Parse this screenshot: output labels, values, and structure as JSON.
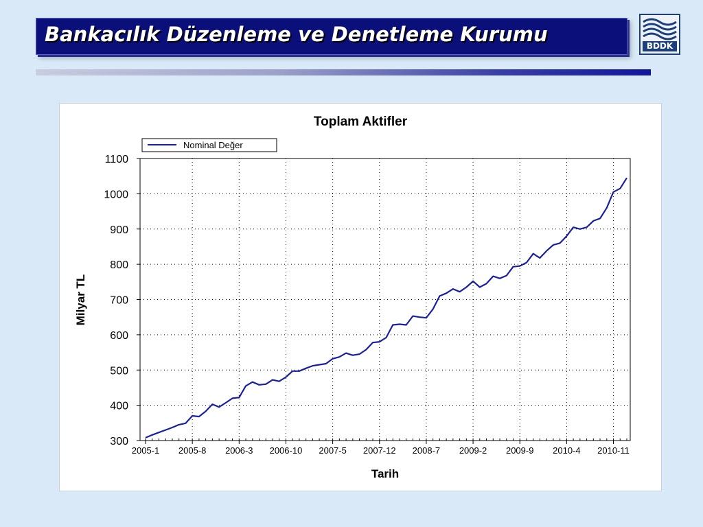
{
  "header": {
    "title": "Bankacılık Düzenleme ve Denetleme Kurumu",
    "logo_text": "BDDK"
  },
  "colors": {
    "title_bg": "#0a0f7a",
    "line": "#1a1fa0",
    "background": "#d9e9f7"
  },
  "chart_data": {
    "type": "line",
    "title": "Toplam Aktifler",
    "xlabel": "Tarih",
    "ylabel": "Milyar TL",
    "ylim": [
      300,
      1100
    ],
    "yticks": [
      300,
      400,
      500,
      600,
      700,
      800,
      900,
      1000,
      1100
    ],
    "xticks": [
      "2005-1",
      "2005-8",
      "2006-3",
      "2006-10",
      "2007-5",
      "2007-12",
      "2008-7",
      "2009-2",
      "2009-9",
      "2010-4",
      "2010-11"
    ],
    "grid": true,
    "legend_position": "top-left",
    "x_start": "2005-1",
    "x_frequency": "monthly",
    "series": [
      {
        "name": "Nominal Değer",
        "color": "#1a1fa0",
        "values": [
          308,
          316,
          323,
          330,
          337,
          345,
          349,
          370,
          368,
          383,
          403,
          395,
          407,
          420,
          422,
          455,
          466,
          458,
          460,
          472,
          468,
          480,
          497,
          497,
          505,
          512,
          515,
          518,
          532,
          537,
          548,
          542,
          545,
          558,
          578,
          580,
          592,
          628,
          630,
          628,
          653,
          650,
          648,
          673,
          710,
          718,
          730,
          722,
          735,
          752,
          735,
          745,
          766,
          760,
          768,
          793,
          795,
          805,
          830,
          818,
          838,
          855,
          860,
          880,
          905,
          900,
          905,
          923,
          930,
          960,
          1005,
          1015,
          1045
        ]
      }
    ]
  }
}
